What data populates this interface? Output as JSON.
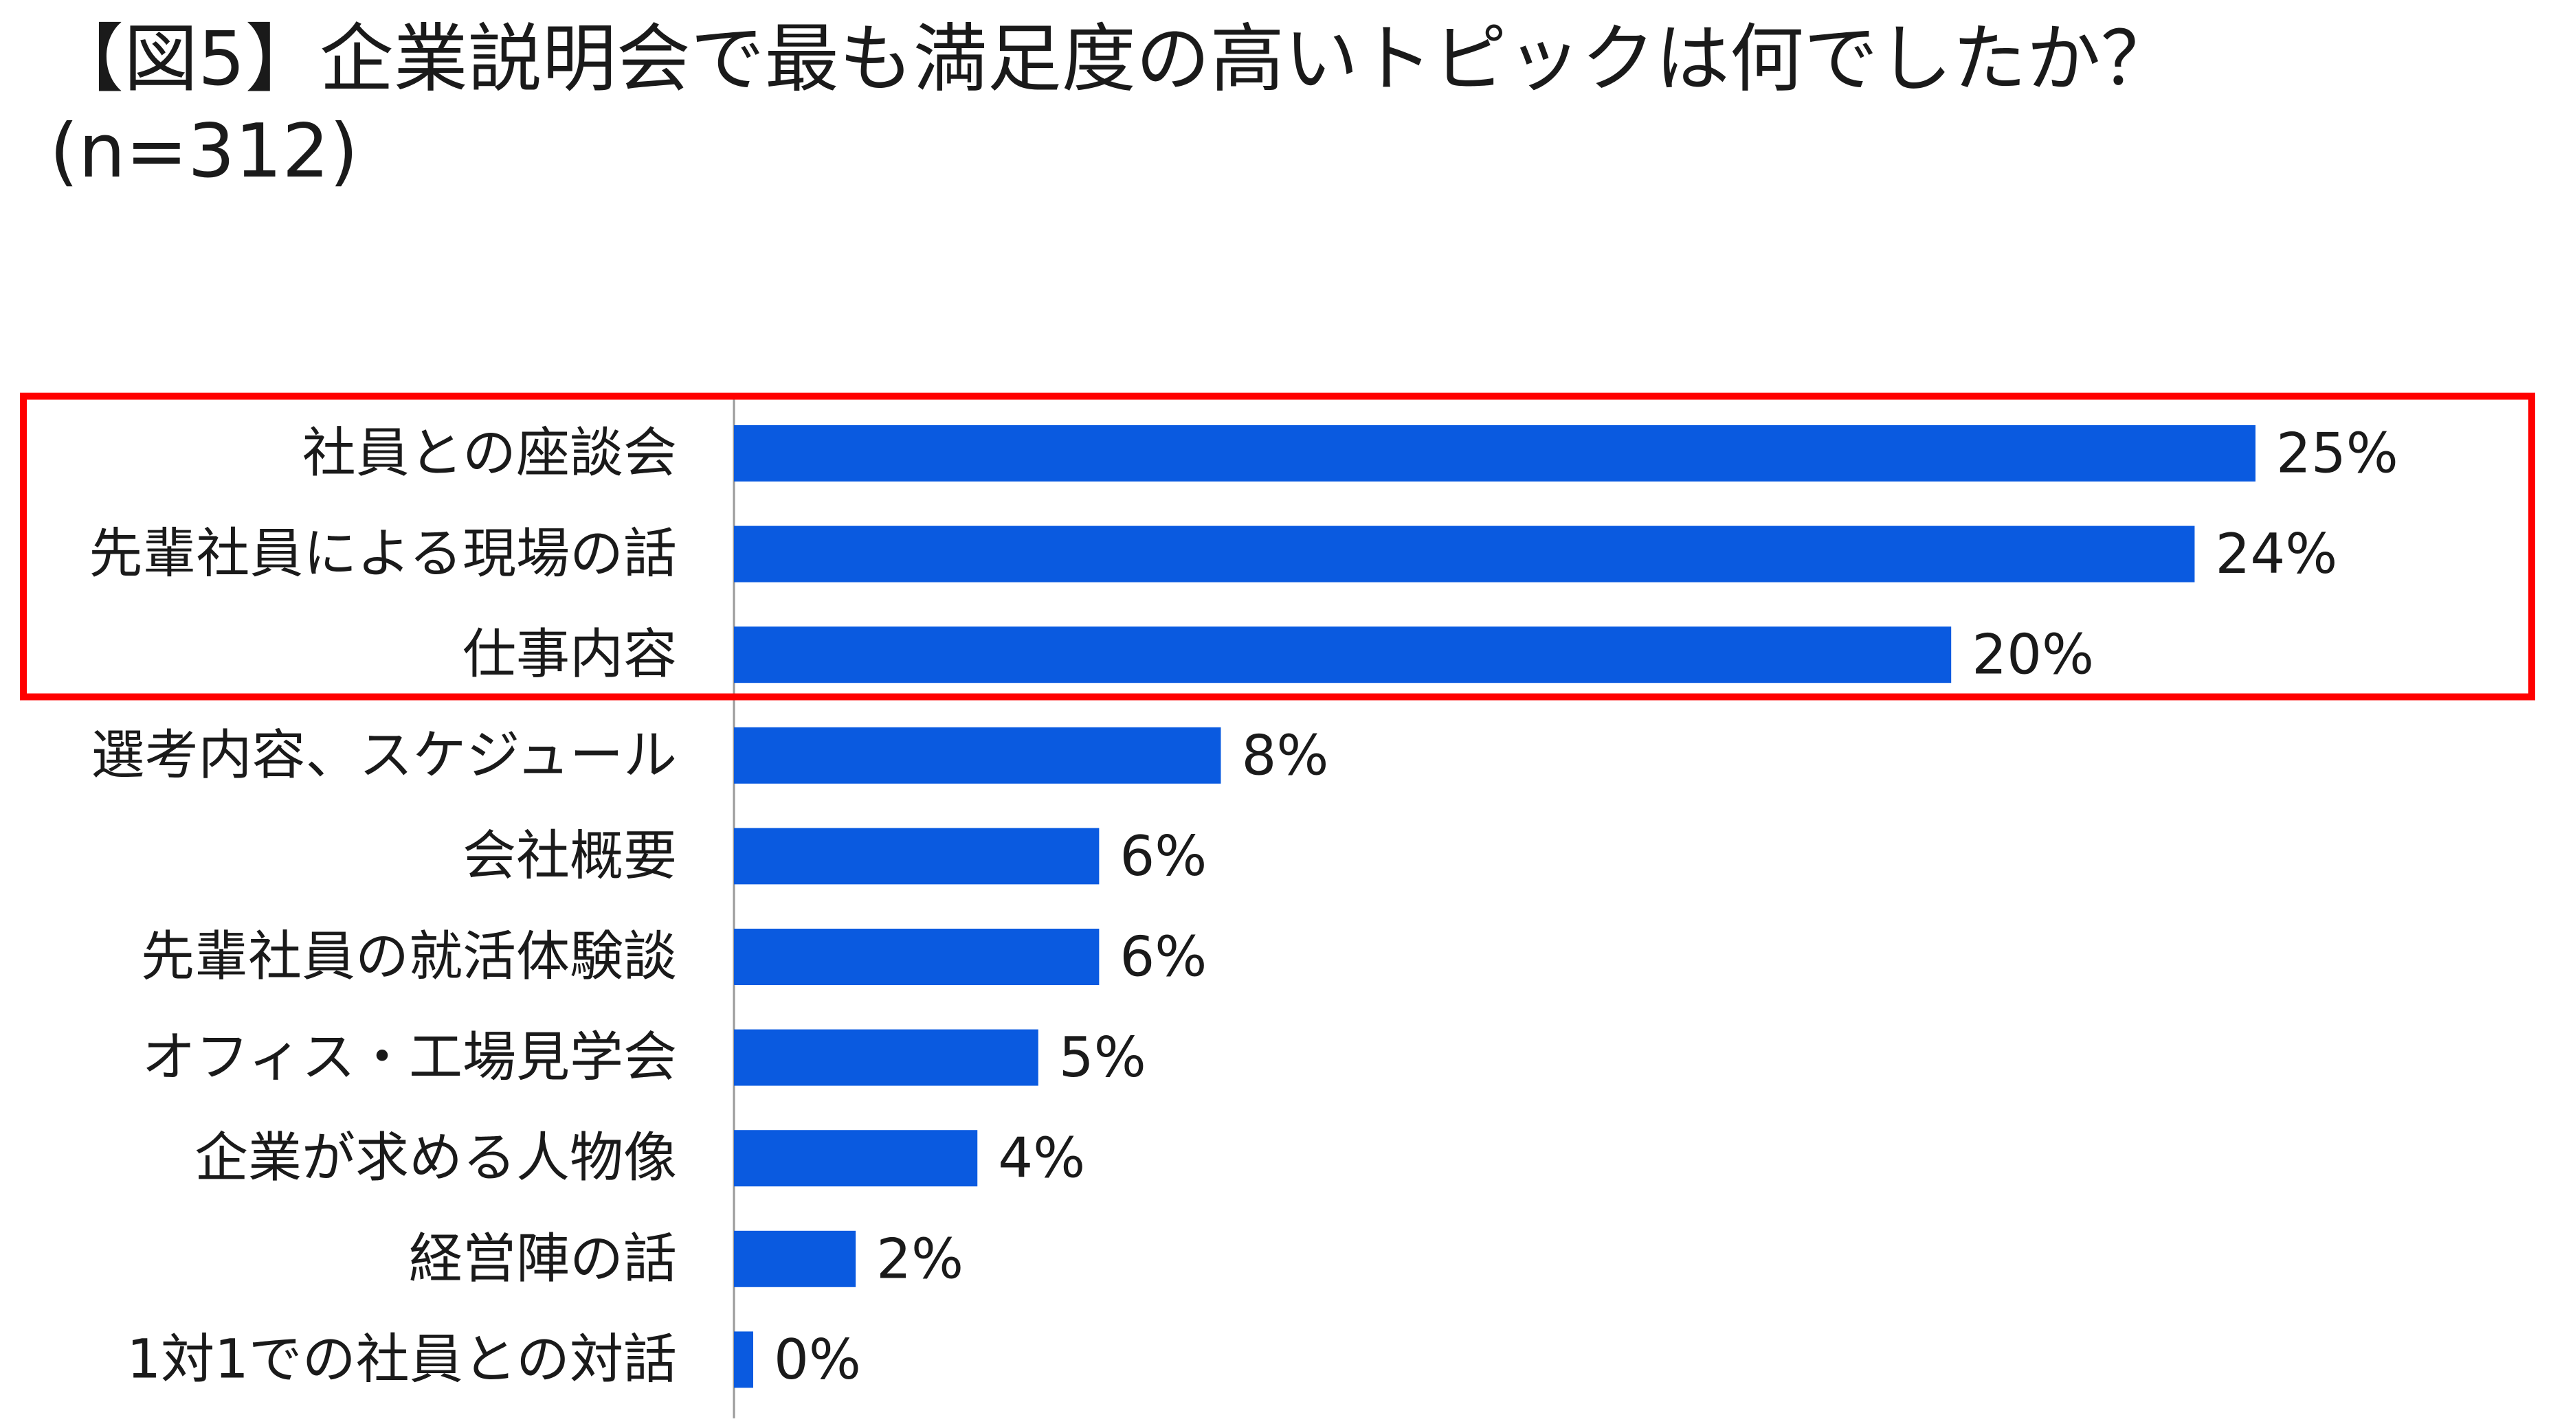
{
  "chart_data": {
    "type": "bar",
    "orientation": "horizontal",
    "title": "【図5】企業説明会で最も満足度の高いトピックは何でしたか？",
    "subtitle": "(n=312)",
    "categories": [
      "社員との座談会",
      "先輩社員による現場の話",
      "仕事内容",
      "選考内容、スケジュール",
      "会社概要",
      "先輩社員の就活体験談",
      "オフィス・工場見学会",
      "企業が求める人物像",
      "経営陣の話",
      "1対1での社員との対話"
    ],
    "values": [
      25,
      24,
      20,
      8,
      6,
      6,
      5,
      4,
      2,
      0
    ],
    "value_labels": [
      "25%",
      "24%",
      "20%",
      "8%",
      "6%",
      "6%",
      "5%",
      "4%",
      "2%",
      "0%"
    ],
    "unit": "%",
    "xlim": [
      0,
      25
    ],
    "grid": false,
    "legend": "none",
    "bar_color": "#0a5ae0",
    "highlight": {
      "categories": [
        "社員との座談会",
        "先輩社員による現場の話",
        "仕事内容"
      ],
      "color": "#ff0000"
    }
  }
}
